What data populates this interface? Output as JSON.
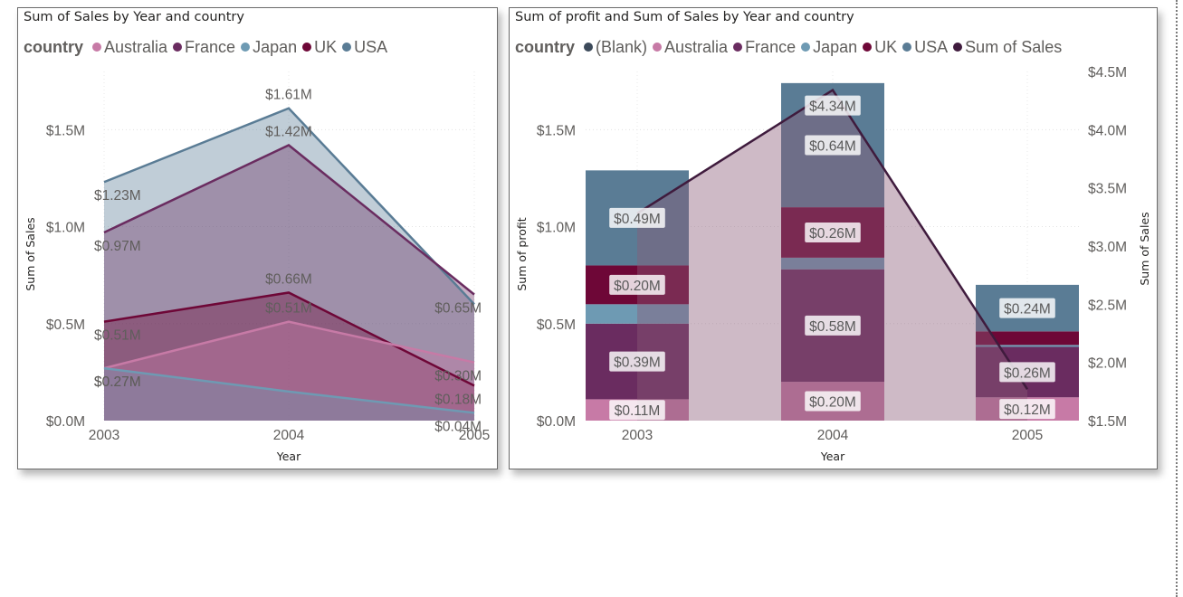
{
  "colors": {
    "(Blank)": "#3c4a5a",
    "Australia": "#c77aa6",
    "France": "#6a2c60",
    "Japan": "#6e9ab3",
    "UK": "#6e0737",
    "USA": "#5a7c95",
    "Sum of Sales": "#3f1b3d"
  },
  "left": {
    "title": "Sum of Sales by Year and country",
    "legend_title": "country",
    "legend": [
      "Australia",
      "France",
      "Japan",
      "UK",
      "USA"
    ]
  },
  "right": {
    "title": "Sum of profit and Sum of Sales by Year and country",
    "legend_title": "country",
    "legend": [
      "(Blank)",
      "Australia",
      "France",
      "Japan",
      "UK",
      "USA",
      "Sum of Sales"
    ]
  },
  "chart_data": [
    {
      "type": "area",
      "title": "Sum of Sales by Year and country",
      "xlabel": "Year",
      "ylabel": "Sum of Sales",
      "categories": [
        "2003",
        "2004",
        "2005"
      ],
      "ylim": [
        0,
        1.8
      ],
      "yticks": [
        "$0.0M",
        "$0.5M",
        "$1.0M",
        "$1.5M"
      ],
      "ytick_values": [
        0,
        0.5,
        1.0,
        1.5
      ],
      "series": [
        {
          "name": "Japan",
          "values": [
            0.27,
            0.15,
            0.04
          ],
          "labels": [
            "$0.27M",
            "",
            "$0.04M"
          ]
        },
        {
          "name": "Australia",
          "values": [
            0.27,
            0.51,
            0.3
          ],
          "labels": [
            "$0.27M",
            "$0.51M",
            "$0.30M"
          ]
        },
        {
          "name": "UK",
          "values": [
            0.51,
            0.66,
            0.18
          ],
          "labels": [
            "$0.51M",
            "$0.66M",
            "$0.18M"
          ]
        },
        {
          "name": "France",
          "values": [
            0.97,
            1.42,
            0.65
          ],
          "labels": [
            "$0.97M",
            "$1.42M",
            "$0.65M"
          ]
        },
        {
          "name": "USA",
          "values": [
            1.23,
            1.61,
            0.6
          ],
          "labels": [
            "$1.23M",
            "$1.61M",
            ""
          ]
        }
      ]
    },
    {
      "type": "bar",
      "stacked": true,
      "title": "Sum of profit and Sum of Sales by Year and country",
      "xlabel": "Year",
      "ylabel": "Sum of profit",
      "y2label": "Sum of Sales",
      "categories": [
        "2003",
        "2004",
        "2005"
      ],
      "ylim": [
        0,
        1.8
      ],
      "yticks": [
        "$0.0M",
        "$0.5M",
        "$1.0M",
        "$1.5M"
      ],
      "ytick_values": [
        0,
        0.5,
        1.0,
        1.5
      ],
      "y2lim": [
        1.5,
        4.5
      ],
      "y2ticks": [
        "$1.5M",
        "$2.0M",
        "$2.5M",
        "$3.0M",
        "$3.5M",
        "$4.0M",
        "$4.5M"
      ],
      "y2tick_values": [
        1.5,
        2.0,
        2.5,
        3.0,
        3.5,
        4.0,
        4.5
      ],
      "series": [
        {
          "name": "Australia",
          "values": [
            0.11,
            0.2,
            0.12
          ],
          "labels": [
            "$0.11M",
            "$0.20M",
            "$0.12M"
          ]
        },
        {
          "name": "France",
          "values": [
            0.39,
            0.58,
            0.26
          ],
          "labels": [
            "$0.39M",
            "$0.58M",
            "$0.26M"
          ]
        },
        {
          "name": "Japan",
          "values": [
            0.1,
            0.06,
            0.01
          ],
          "labels": [
            "",
            "",
            ""
          ]
        },
        {
          "name": "UK",
          "values": [
            0.2,
            0.26,
            0.07
          ],
          "labels": [
            "$0.20M",
            "$0.26M",
            ""
          ]
        },
        {
          "name": "USA",
          "values": [
            0.49,
            0.64,
            0.24
          ],
          "labels": [
            "$0.49M",
            "$0.64M",
            "$0.24M"
          ]
        }
      ],
      "line": {
        "name": "Sum of Sales",
        "values": [
          3.28,
          4.34,
          1.77
        ],
        "labels": [
          "",
          "$4.34M",
          ""
        ]
      }
    }
  ]
}
